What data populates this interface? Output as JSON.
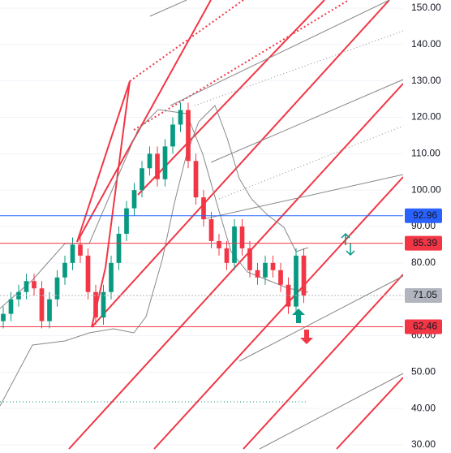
{
  "chart_data": {
    "type": "candlestick",
    "categories": [
      null,
      null,
      null,
      null,
      null,
      null,
      null,
      null,
      null,
      null,
      null,
      null,
      null,
      null,
      null,
      null,
      null,
      null,
      null,
      null,
      null,
      null,
      null,
      null,
      null,
      null,
      null,
      null,
      null,
      null,
      null,
      null,
      null,
      null,
      null,
      null,
      null,
      null,
      null,
      null
    ],
    "open": [
      64,
      66,
      70,
      72,
      75,
      73,
      64,
      70,
      76,
      80,
      85,
      82,
      72,
      65,
      72,
      80,
      88,
      95,
      100,
      106,
      110,
      103,
      112,
      118,
      122,
      108,
      98,
      92,
      86,
      84,
      80,
      90,
      84,
      78,
      76,
      80,
      78,
      74,
      68,
      82
    ],
    "high": [
      68,
      72,
      74,
      77,
      77,
      75,
      72,
      78,
      82,
      87,
      87,
      84,
      74,
      74,
      82,
      90,
      97,
      102,
      108,
      112,
      112,
      114,
      120,
      124,
      124,
      110,
      100,
      94,
      88,
      86,
      92,
      92,
      86,
      80,
      82,
      82,
      80,
      76,
      84,
      84
    ],
    "low": [
      62,
      64,
      68,
      70,
      71,
      62,
      62,
      68,
      74,
      78,
      80,
      70,
      63,
      63,
      70,
      78,
      86,
      93,
      98,
      104,
      101,
      101,
      110,
      116,
      106,
      96,
      90,
      84,
      82,
      78,
      78,
      82,
      76,
      74,
      74,
      76,
      72,
      66,
      66,
      69
    ],
    "close": [
      66,
      70,
      72,
      75,
      73,
      64,
      70,
      76,
      80,
      85,
      82,
      72,
      65,
      72,
      80,
      88,
      95,
      100,
      106,
      110,
      103,
      112,
      118,
      122,
      108,
      98,
      92,
      86,
      84,
      80,
      90,
      84,
      78,
      76,
      80,
      78,
      74,
      68,
      82,
      71
    ],
    "up_color": "#089981",
    "down_color": "#f23645",
    "ylim": [
      30,
      150
    ],
    "yticks": [
      {
        "value": 30,
        "label": "30.00"
      },
      {
        "value": 40,
        "label": "40.00"
      },
      {
        "value": 50,
        "label": "50.00"
      },
      {
        "value": 60,
        "label": "60.00"
      },
      {
        "value": 70,
        "label": "70.00"
      },
      {
        "value": 80,
        "label": "80.00"
      },
      {
        "value": 90,
        "label": "90.00"
      },
      {
        "value": 100,
        "label": "100.00"
      },
      {
        "value": 110,
        "label": "110.00"
      },
      {
        "value": 120,
        "label": "120.00"
      },
      {
        "value": 130,
        "label": "130.00"
      },
      {
        "value": 140,
        "label": "140.00"
      },
      {
        "value": 150,
        "label": "150.00"
      }
    ],
    "grid": true,
    "price_lines": [
      {
        "value": 92.96,
        "color": "#2962ff",
        "label_text_color": "#ffffff"
      },
      {
        "value": 85.39,
        "color": "#f23645",
        "label_text_color": "#ffffff"
      },
      {
        "value": 71.05,
        "color": "#b2b5be",
        "label_text_color": "#131722"
      },
      {
        "value": 62.46,
        "color": "#f23645",
        "label_text_color": "#ffffff"
      }
    ]
  }
}
